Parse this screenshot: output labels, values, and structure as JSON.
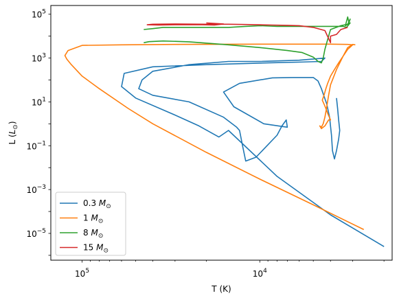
{
  "chart_data": {
    "type": "line",
    "title": "",
    "xlabel": "T (K)",
    "ylabel": "L (",
    "ylabel_sym": "L",
    "ylabel_sub": "⊙",
    "ylabel_close": ")",
    "x_scale": "log",
    "y_scale": "log",
    "x_inverted": true,
    "xlim": [
      150000,
      1800
    ],
    "ylim": [
      6e-07,
      250000
    ],
    "x_ticks": [
      {
        "value": 100000,
        "base": "10",
        "exp": "5"
      },
      {
        "value": 10000,
        "base": "10",
        "exp": "4"
      }
    ],
    "y_ticks": [
      {
        "value": 100000,
        "base": "10",
        "exp": "5"
      },
      {
        "value": 1000,
        "base": "10",
        "exp": "3"
      },
      {
        "value": 10,
        "base": "10",
        "exp": "1"
      },
      {
        "value": 0.1,
        "base": "10",
        "exp": "−1"
      },
      {
        "value": 0.001,
        "base": "10",
        "exp": "−3"
      },
      {
        "value": 1e-05,
        "base": "10",
        "exp": "−5"
      }
    ],
    "grid": false,
    "legend_position": "lower-left",
    "series": [
      {
        "name": "0.3 M",
        "name_sub": "⊙",
        "color": "#1f77b4",
        "points": [
          [
            3700,
            15
          ],
          [
            3650,
            5
          ],
          [
            3600,
            1.5
          ],
          [
            3550,
            0.5
          ],
          [
            3600,
            0.2
          ],
          [
            3700,
            0.06
          ],
          [
            3800,
            0.025
          ],
          [
            3900,
            0.06
          ],
          [
            3950,
            0.3
          ],
          [
            4050,
            2
          ],
          [
            4200,
            8
          ],
          [
            4500,
            40
          ],
          [
            4700,
            90
          ],
          [
            5000,
            130
          ],
          [
            6500,
            130
          ],
          [
            8500,
            125
          ],
          [
            13000,
            70
          ],
          [
            16000,
            28
          ],
          [
            14000,
            6
          ],
          [
            9500,
            1
          ],
          [
            7000,
            0.7
          ],
          [
            7100,
            1.5
          ],
          [
            7500,
            0.8
          ],
          [
            8000,
            0.3
          ],
          [
            10500,
            0.03
          ],
          [
            12000,
            0.02
          ],
          [
            12500,
            0.1
          ],
          [
            13000,
            0.5
          ],
          [
            13500,
            0.7
          ],
          [
            16000,
            2
          ],
          [
            25000,
            10
          ],
          [
            40000,
            20
          ],
          [
            48000,
            40
          ],
          [
            46000,
            100
          ],
          [
            40000,
            250
          ],
          [
            25000,
            500
          ],
          [
            15000,
            700
          ],
          [
            10000,
            700
          ],
          [
            6000,
            800
          ],
          [
            4300,
            1000
          ],
          [
            4500,
            700
          ],
          [
            6000,
            650
          ],
          [
            9000,
            600
          ],
          [
            20000,
            500
          ],
          [
            40000,
            400
          ],
          [
            58000,
            200
          ],
          [
            60000,
            50
          ],
          [
            50000,
            15
          ],
          [
            30000,
            2.5
          ],
          [
            22000,
            0.8
          ],
          [
            17000,
            0.25
          ],
          [
            15000,
            0.5
          ],
          [
            8000,
            0.004
          ],
          [
            4000,
            7e-05
          ],
          [
            2000,
            2.5e-06
          ]
        ]
      },
      {
        "name": "1 M",
        "name_sub": "⊙",
        "color": "#ff7f0e",
        "points": [
          [
            2900,
            4000
          ],
          [
            3000,
            4200
          ],
          [
            3200,
            3000
          ],
          [
            3400,
            1200
          ],
          [
            3700,
            300
          ],
          [
            4000,
            60
          ],
          [
            4100,
            20
          ],
          [
            4200,
            6
          ],
          [
            4300,
            2
          ],
          [
            4400,
            1
          ],
          [
            4500,
            0.7
          ],
          [
            4600,
            0.8
          ],
          [
            4500,
            0.6
          ],
          [
            4300,
            0.8
          ],
          [
            4100,
            1.5
          ],
          [
            4000,
            1.5
          ],
          [
            4150,
            3
          ],
          [
            4250,
            5
          ],
          [
            4350,
            8
          ],
          [
            4450,
            12
          ],
          [
            4350,
            20
          ],
          [
            4250,
            40
          ],
          [
            4150,
            70
          ],
          [
            4000,
            150
          ],
          [
            3800,
            300
          ],
          [
            3600,
            600
          ],
          [
            3400,
            1200
          ],
          [
            3200,
            2500
          ],
          [
            3000,
            4000
          ],
          [
            3200,
            4200
          ],
          [
            4000,
            4300
          ],
          [
            10000,
            4300
          ],
          [
            30000,
            4200
          ],
          [
            60000,
            4000
          ],
          [
            100000,
            3800
          ],
          [
            120000,
            2200
          ],
          [
            125000,
            1300
          ],
          [
            122000,
            900
          ],
          [
            115000,
            500
          ],
          [
            100000,
            150
          ],
          [
            80000,
            40
          ],
          [
            55000,
            5
          ],
          [
            40000,
            1
          ],
          [
            20000,
            0.05
          ],
          [
            10000,
            0.003
          ],
          [
            5000,
            0.0002
          ],
          [
            2600,
            1.5e-05
          ]
        ]
      },
      {
        "name": "8 M",
        "name_sub": "⊙",
        "color": "#2ca02c",
        "points": [
          [
            45000,
            5000
          ],
          [
            42000,
            5600
          ],
          [
            35000,
            6000
          ],
          [
            25000,
            5500
          ],
          [
            20000,
            4800
          ],
          [
            15000,
            4000
          ],
          [
            10000,
            3000
          ],
          [
            7000,
            2200
          ],
          [
            5800,
            1800
          ],
          [
            5000,
            1100
          ],
          [
            4700,
            700
          ],
          [
            4500,
            600
          ],
          [
            4400,
            1000
          ],
          [
            4300,
            2500
          ],
          [
            4200,
            5000
          ],
          [
            4100,
            10000
          ],
          [
            4000,
            20000
          ],
          [
            3500,
            30000
          ],
          [
            3200,
            35000
          ],
          [
            3100,
            60000
          ],
          [
            3150,
            40000
          ],
          [
            3200,
            75000
          ],
          [
            3300,
            30000
          ],
          [
            3100,
            40000
          ],
          [
            3250,
            25000
          ],
          [
            3400,
            28000
          ],
          [
            4000,
            28000
          ],
          [
            6000,
            28000
          ],
          [
            8000,
            28000
          ],
          [
            10000,
            30000
          ],
          [
            12000,
            28000
          ],
          [
            15000,
            25000
          ],
          [
            18000,
            25000
          ],
          [
            20000,
            25000
          ],
          [
            25000,
            25000
          ],
          [
            30000,
            25000
          ],
          [
            35000,
            25000
          ],
          [
            40000,
            22000
          ],
          [
            45000,
            20000
          ]
        ]
      },
      {
        "name": "15 M",
        "name_sub": "⊙",
        "color": "#d62728",
        "points": [
          [
            20000,
            40000
          ],
          [
            16000,
            36000
          ],
          [
            18000,
            32000
          ],
          [
            21000,
            33000
          ],
          [
            30000,
            33000
          ],
          [
            37000,
            32000
          ],
          [
            43000,
            33000
          ],
          [
            40000,
            35000
          ],
          [
            30000,
            36000
          ],
          [
            20000,
            35000
          ],
          [
            15000,
            35000
          ],
          [
            12000,
            34000
          ],
          [
            10000,
            33000
          ],
          [
            8500,
            32000
          ],
          [
            7000,
            31000
          ],
          [
            6000,
            30000
          ],
          [
            5000,
            25000
          ],
          [
            4300,
            18000
          ],
          [
            4000,
            5000
          ],
          [
            4000,
            10000
          ],
          [
            3700,
            12000
          ],
          [
            3500,
            20000
          ],
          [
            3200,
            25000
          ]
        ]
      }
    ]
  }
}
